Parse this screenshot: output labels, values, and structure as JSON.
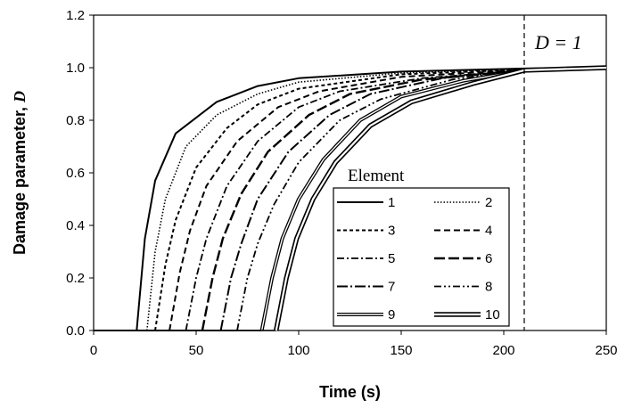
{
  "chart_data": {
    "type": "line",
    "xlabel": "Time (s)",
    "ylabel_prefix": "Damage parameter, ",
    "ylabel_symbol": "D",
    "xlim": [
      0,
      250
    ],
    "ylim": [
      0,
      1.2
    ],
    "xticks": [
      0,
      50,
      100,
      150,
      200,
      250
    ],
    "yticks": [
      "0.0",
      "0.2",
      "0.4",
      "0.6",
      "0.8",
      "1.0",
      "1.2"
    ],
    "grid": false,
    "legend": {
      "title": "Element",
      "placement": "lower-right"
    },
    "annotation": {
      "text": "D = 1",
      "x": 210
    },
    "series": [
      {
        "name": "1",
        "style": "solid",
        "onset": 21,
        "points": [
          [
            0,
            0
          ],
          [
            21,
            0
          ],
          [
            25,
            0.35
          ],
          [
            30,
            0.57
          ],
          [
            40,
            0.75
          ],
          [
            60,
            0.87
          ],
          [
            80,
            0.93
          ],
          [
            100,
            0.96
          ],
          [
            150,
            0.985
          ],
          [
            210,
            0.997
          ],
          [
            250,
            1.0
          ]
        ]
      },
      {
        "name": "2",
        "style": "dotted",
        "onset": 26,
        "points": [
          [
            0,
            0
          ],
          [
            26,
            0
          ],
          [
            30,
            0.3
          ],
          [
            35,
            0.5
          ],
          [
            45,
            0.7
          ],
          [
            60,
            0.82
          ],
          [
            80,
            0.9
          ],
          [
            100,
            0.945
          ],
          [
            150,
            0.98
          ],
          [
            210,
            0.995
          ],
          [
            250,
            1.0
          ]
        ]
      },
      {
        "name": "3",
        "style": "short-dash",
        "onset": 30,
        "points": [
          [
            0,
            0
          ],
          [
            30,
            0
          ],
          [
            35,
            0.25
          ],
          [
            40,
            0.42
          ],
          [
            50,
            0.62
          ],
          [
            65,
            0.77
          ],
          [
            80,
            0.86
          ],
          [
            100,
            0.92
          ],
          [
            150,
            0.975
          ],
          [
            210,
            0.993
          ],
          [
            250,
            1.0
          ]
        ]
      },
      {
        "name": "4",
        "style": "dash",
        "onset": 37,
        "points": [
          [
            0,
            0
          ],
          [
            37,
            0
          ],
          [
            42,
            0.22
          ],
          [
            47,
            0.38
          ],
          [
            55,
            0.55
          ],
          [
            70,
            0.72
          ],
          [
            90,
            0.85
          ],
          [
            110,
            0.91
          ],
          [
            150,
            0.965
          ],
          [
            210,
            0.992
          ],
          [
            250,
            1.0
          ]
        ]
      },
      {
        "name": "5",
        "style": "dash-dot",
        "onset": 45,
        "points": [
          [
            0,
            0
          ],
          [
            45,
            0
          ],
          [
            50,
            0.2
          ],
          [
            55,
            0.35
          ],
          [
            65,
            0.55
          ],
          [
            80,
            0.72
          ],
          [
            100,
            0.85
          ],
          [
            120,
            0.91
          ],
          [
            160,
            0.96
          ],
          [
            210,
            0.99
          ],
          [
            250,
            1.0
          ]
        ]
      },
      {
        "name": "6",
        "style": "long-dash",
        "onset": 53,
        "points": [
          [
            0,
            0
          ],
          [
            53,
            0
          ],
          [
            58,
            0.2
          ],
          [
            63,
            0.35
          ],
          [
            72,
            0.52
          ],
          [
            85,
            0.68
          ],
          [
            105,
            0.82
          ],
          [
            125,
            0.9
          ],
          [
            160,
            0.955
          ],
          [
            210,
            0.99
          ],
          [
            250,
            1.0
          ]
        ]
      },
      {
        "name": "7",
        "style": "long-dash-dot",
        "onset": 62,
        "points": [
          [
            0,
            0
          ],
          [
            62,
            0
          ],
          [
            67,
            0.2
          ],
          [
            72,
            0.33
          ],
          [
            80,
            0.5
          ],
          [
            95,
            0.68
          ],
          [
            115,
            0.82
          ],
          [
            135,
            0.9
          ],
          [
            170,
            0.96
          ],
          [
            210,
            0.99
          ],
          [
            250,
            1.0
          ]
        ]
      },
      {
        "name": "8",
        "style": "dash-dot-dot",
        "onset": 70,
        "points": [
          [
            0,
            0
          ],
          [
            70,
            0
          ],
          [
            75,
            0.2
          ],
          [
            80,
            0.33
          ],
          [
            88,
            0.48
          ],
          [
            100,
            0.64
          ],
          [
            120,
            0.8
          ],
          [
            140,
            0.88
          ],
          [
            175,
            0.955
          ],
          [
            210,
            0.99
          ],
          [
            250,
            1.0
          ]
        ]
      },
      {
        "name": "9",
        "style": "double",
        "onset": 82,
        "points": [
          [
            0,
            0
          ],
          [
            82,
            0
          ],
          [
            87,
            0.2
          ],
          [
            92,
            0.35
          ],
          [
            100,
            0.5
          ],
          [
            112,
            0.65
          ],
          [
            130,
            0.8
          ],
          [
            150,
            0.89
          ],
          [
            180,
            0.95
          ],
          [
            210,
            0.99
          ],
          [
            250,
            1.0
          ]
        ]
      },
      {
        "name": "10",
        "style": "double-thick",
        "onset": 89,
        "points": [
          [
            0,
            0
          ],
          [
            89,
            0
          ],
          [
            94,
            0.2
          ],
          [
            99,
            0.35
          ],
          [
            107,
            0.5
          ],
          [
            118,
            0.64
          ],
          [
            135,
            0.78
          ],
          [
            155,
            0.87
          ],
          [
            185,
            0.94
          ],
          [
            210,
            0.99
          ],
          [
            250,
            1.0
          ]
        ]
      }
    ]
  }
}
